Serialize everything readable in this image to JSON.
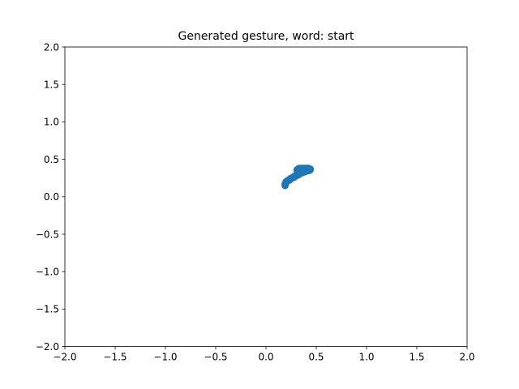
{
  "chart_data": {
    "type": "scatter",
    "title": "Generated gesture, word: start",
    "xlabel": "",
    "ylabel": "",
    "xlim": [
      -2.0,
      2.0
    ],
    "ylim": [
      -2.0,
      2.0
    ],
    "grid": false,
    "xticks": [
      "−2.0",
      "−1.5",
      "−1.0",
      "−0.5",
      "0.0",
      "0.5",
      "1.0",
      "1.5",
      "2.0"
    ],
    "yticks": [
      "−2.0",
      "−1.5",
      "−1.0",
      "−0.5",
      "0.0",
      "0.5",
      "1.0",
      "1.5",
      "2.0"
    ],
    "series": [
      {
        "color": "#1f77b4",
        "points": [
          [
            0.19,
            0.15
          ],
          [
            0.19,
            0.17
          ],
          [
            0.2,
            0.19
          ],
          [
            0.2,
            0.2
          ],
          [
            0.21,
            0.21
          ],
          [
            0.22,
            0.22
          ],
          [
            0.23,
            0.22
          ],
          [
            0.24,
            0.23
          ],
          [
            0.24,
            0.24
          ],
          [
            0.25,
            0.25
          ],
          [
            0.26,
            0.25
          ],
          [
            0.27,
            0.26
          ],
          [
            0.28,
            0.26
          ],
          [
            0.28,
            0.27
          ],
          [
            0.29,
            0.28
          ],
          [
            0.3,
            0.28
          ],
          [
            0.31,
            0.29
          ],
          [
            0.32,
            0.29
          ],
          [
            0.32,
            0.3
          ],
          [
            0.33,
            0.31
          ],
          [
            0.34,
            0.31
          ],
          [
            0.35,
            0.32
          ],
          [
            0.36,
            0.32
          ],
          [
            0.37,
            0.33
          ],
          [
            0.38,
            0.33
          ],
          [
            0.39,
            0.34
          ],
          [
            0.4,
            0.34
          ],
          [
            0.41,
            0.35
          ],
          [
            0.42,
            0.35
          ],
          [
            0.43,
            0.35
          ],
          [
            0.44,
            0.36
          ],
          [
            0.44,
            0.37
          ],
          [
            0.43,
            0.37
          ],
          [
            0.42,
            0.38
          ],
          [
            0.41,
            0.38
          ],
          [
            0.4,
            0.38
          ],
          [
            0.39,
            0.38
          ],
          [
            0.38,
            0.38
          ],
          [
            0.37,
            0.38
          ],
          [
            0.36,
            0.38
          ],
          [
            0.35,
            0.38
          ],
          [
            0.34,
            0.38
          ],
          [
            0.33,
            0.38
          ],
          [
            0.32,
            0.37
          ],
          [
            0.31,
            0.36
          ],
          [
            0.31,
            0.35
          ],
          [
            0.32,
            0.34
          ],
          [
            0.33,
            0.33
          ],
          [
            0.34,
            0.33
          ],
          [
            0.35,
            0.34
          ],
          [
            0.36,
            0.35
          ],
          [
            0.37,
            0.36
          ],
          [
            0.38,
            0.36
          ],
          [
            0.39,
            0.36
          ],
          [
            0.4,
            0.36
          ],
          [
            0.41,
            0.37
          ],
          [
            0.42,
            0.37
          ],
          [
            0.43,
            0.36
          ],
          [
            0.38,
            0.35
          ],
          [
            0.36,
            0.34
          ]
        ]
      }
    ]
  }
}
